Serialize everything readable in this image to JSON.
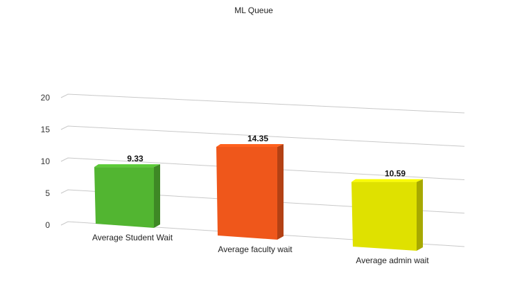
{
  "chart_data": {
    "type": "bar",
    "title": "ML Queue",
    "categories": [
      "Average Student Wait",
      "Average faculty wait",
      "Average admin wait"
    ],
    "values": [
      9.33,
      14.35,
      10.59
    ],
    "data_labels": [
      "9.33",
      "14.35",
      "10.59"
    ],
    "y_ticks": [
      "0",
      "5",
      "10",
      "15",
      "20"
    ],
    "ylim": [
      0,
      20
    ],
    "xlabel": "",
    "ylabel": "",
    "grid": true,
    "style": "3d-perspective",
    "colors": [
      "#52b531",
      "#ef571b",
      "#dfe100"
    ]
  }
}
